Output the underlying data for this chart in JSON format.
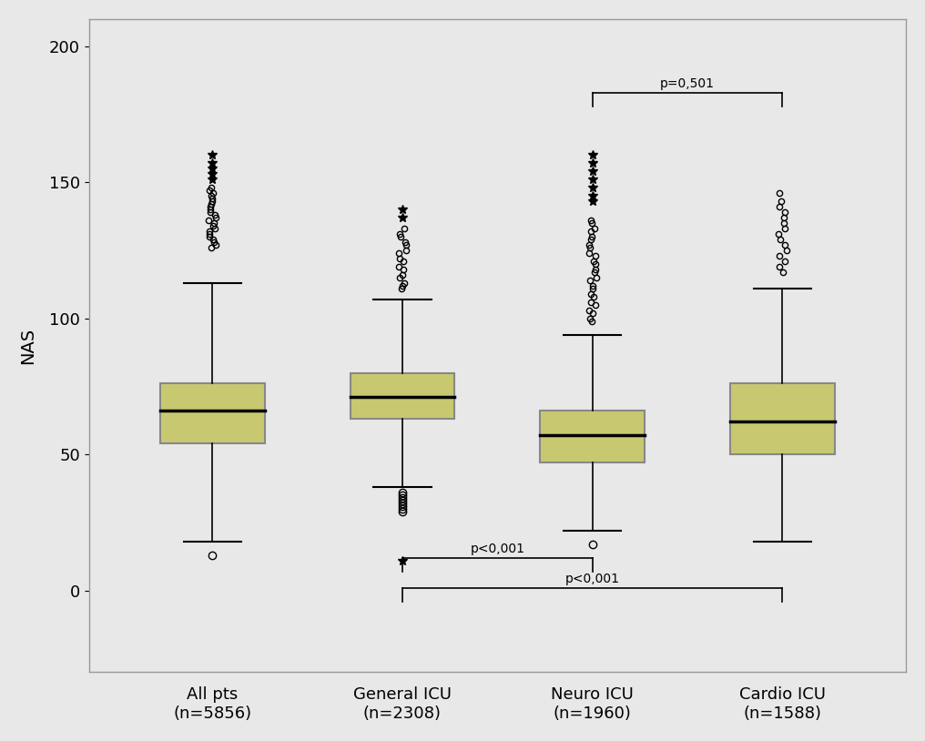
{
  "categories": [
    "All pts\n(n=5856)",
    "General ICU\n(n=2308)",
    "Neuro ICU\n(n=1960)",
    "Cardio ICU\n(n=1588)"
  ],
  "box_keys": [
    "All pts",
    "General ICU",
    "Neuro ICU",
    "Cardio ICU"
  ],
  "box_data": {
    "All pts": {
      "q1": 54,
      "median": 66,
      "q3": 76,
      "whisker_low": 18,
      "whisker_high": 113,
      "outliers_circle": [
        13
      ],
      "far_outliers_circle": [
        126,
        127,
        128,
        129,
        130,
        131,
        132,
        133,
        134,
        135,
        136,
        137,
        138,
        139,
        140,
        141,
        142,
        143,
        144,
        145,
        146,
        147,
        148
      ],
      "far_outliers_star": [
        151,
        153,
        155,
        157,
        160
      ]
    },
    "General ICU": {
      "q1": 63,
      "median": 71,
      "q3": 80,
      "whisker_low": 38,
      "whisker_high": 107,
      "outliers_circle": [
        29,
        30,
        31,
        32,
        33,
        34,
        35,
        36
      ],
      "far_outliers_circle": [
        111,
        112,
        113,
        115,
        116,
        118,
        119,
        121,
        122,
        124,
        125,
        127,
        128,
        130,
        131,
        133
      ],
      "far_outliers_star": [
        11,
        137,
        140
      ]
    },
    "Neuro ICU": {
      "q1": 47,
      "median": 57,
      "q3": 66,
      "whisker_low": 22,
      "whisker_high": 94,
      "outliers_circle": [
        17
      ],
      "far_outliers_circle": [
        99,
        100,
        102,
        103,
        105,
        106,
        108,
        109,
        111,
        112,
        114,
        115,
        117,
        118,
        120,
        121,
        123,
        124,
        126,
        127,
        129,
        130,
        132,
        133,
        135,
        136
      ],
      "far_outliers_star": [
        143,
        145,
        148,
        151,
        154,
        157,
        160
      ]
    },
    "Cardio ICU": {
      "q1": 50,
      "median": 62,
      "q3": 76,
      "whisker_low": 18,
      "whisker_high": 111,
      "outliers_circle": [],
      "far_outliers_circle": [
        117,
        119,
        121,
        123,
        125,
        127,
        129,
        131,
        133,
        135,
        137,
        139,
        141,
        143,
        146
      ],
      "far_outliers_star": []
    }
  },
  "box_color": "#c8c870",
  "box_edge_color": "#888888",
  "median_color": "#000000",
  "whisker_color": "#000000",
  "ylabel": "NAS",
  "ylim": [
    -30,
    210
  ],
  "yticks": [
    0,
    50,
    100,
    150,
    200
  ],
  "background_color": "#e8e8e8",
  "box_width": 0.55,
  "positions": [
    1,
    2,
    3,
    4
  ]
}
